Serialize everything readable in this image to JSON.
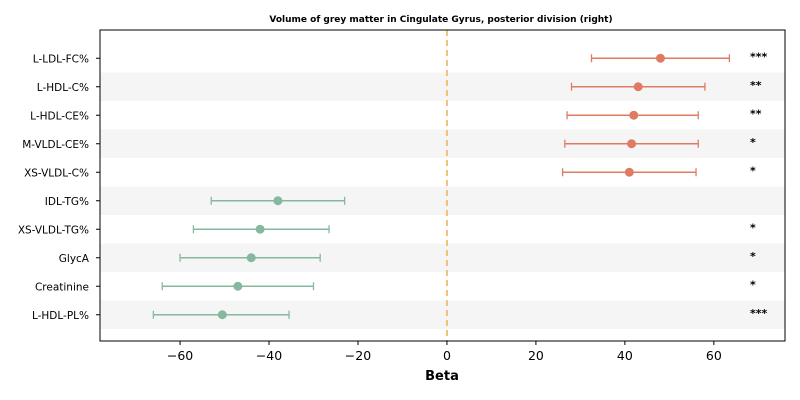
{
  "chart_data": {
    "type": "scatter",
    "title": "Volume of grey matter in Cingulate Gyrus, posterior division (right)",
    "xlabel": "Beta",
    "ylabel": "",
    "xlim": [
      -78,
      76
    ],
    "xticks": [
      -60,
      -40,
      -20,
      0,
      20,
      40,
      60
    ],
    "xtick_labels": [
      "−60",
      "−40",
      "−20",
      "0",
      "20",
      "40",
      "60"
    ],
    "reference_line": 0,
    "grid": false,
    "colors": {
      "positive": "#e07b62",
      "negative": "#86b89e",
      "reference": "#f0c27a",
      "band": "#f5f5f5"
    },
    "points": [
      {
        "label": "L-LDL-FC%",
        "beta": 48,
        "ci_low": 32.5,
        "ci_high": 63.5,
        "sig": "***"
      },
      {
        "label": "L-HDL-C%",
        "beta": 43,
        "ci_low": 28,
        "ci_high": 58,
        "sig": "**"
      },
      {
        "label": "L-HDL-CE%",
        "beta": 42,
        "ci_low": 27,
        "ci_high": 56.5,
        "sig": "**"
      },
      {
        "label": "M-VLDL-CE%",
        "beta": 41.5,
        "ci_low": 26.5,
        "ci_high": 56.5,
        "sig": "*"
      },
      {
        "label": "XS-VLDL-C%",
        "beta": 41,
        "ci_low": 26,
        "ci_high": 56,
        "sig": "*"
      },
      {
        "label": "IDL-TG%",
        "beta": -38,
        "ci_low": -53,
        "ci_high": -23,
        "sig": ""
      },
      {
        "label": "XS-VLDL-TG%",
        "beta": -42,
        "ci_low": -57,
        "ci_high": -26.5,
        "sig": "*"
      },
      {
        "label": "GlycA",
        "beta": -44,
        "ci_low": -60,
        "ci_high": -28.5,
        "sig": "*"
      },
      {
        "label": "Creatinine",
        "beta": -47,
        "ci_low": -64,
        "ci_high": -30,
        "sig": "*"
      },
      {
        "label": "L-HDL-PL%",
        "beta": -50.5,
        "ci_low": -66,
        "ci_high": -35.5,
        "sig": "***"
      }
    ]
  }
}
